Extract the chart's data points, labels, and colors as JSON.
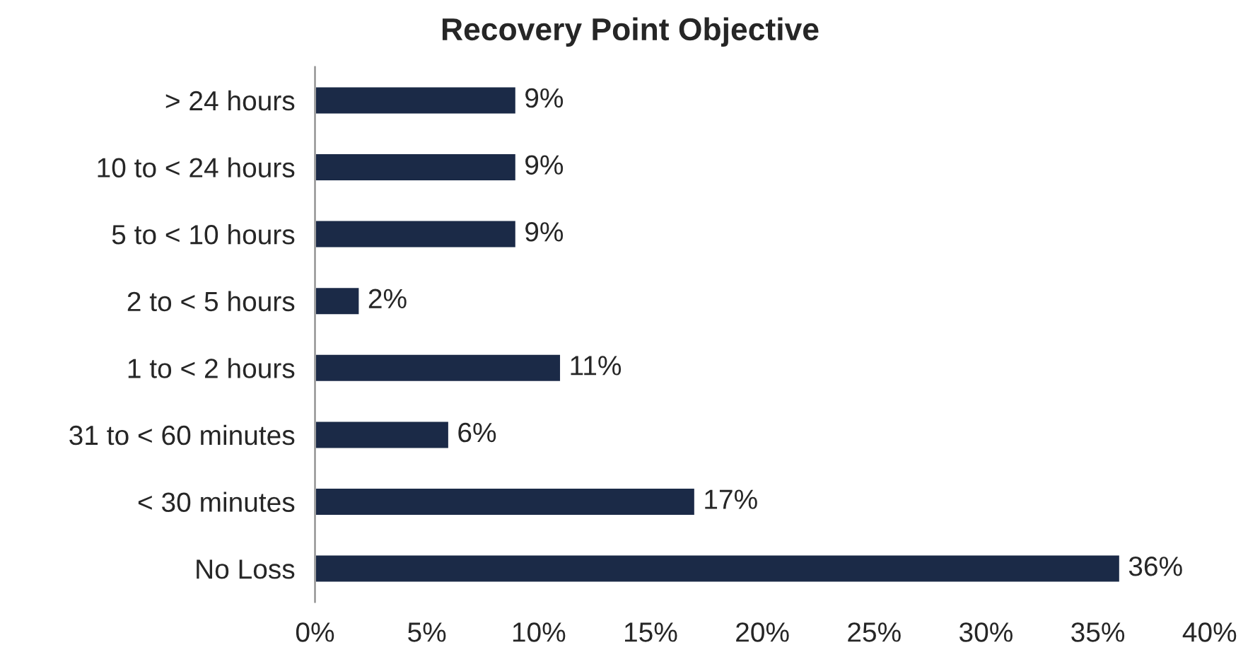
{
  "chart_data": {
    "type": "bar",
    "orientation": "horizontal",
    "title": "Recovery Point Objective",
    "categories": [
      "> 24 hours",
      "10 to < 24 hours",
      "5 to < 10 hours",
      "2 to < 5 hours",
      "1 to < 2 hours",
      "31 to < 60 minutes",
      "< 30 minutes",
      "No Loss"
    ],
    "values": [
      9,
      9,
      9,
      2,
      11,
      6,
      17,
      36
    ],
    "value_labels": [
      "9%",
      "9%",
      "9%",
      "2%",
      "11%",
      "6%",
      "17%",
      "36%"
    ],
    "color": "#1b2a47",
    "xlim": [
      0,
      40
    ],
    "xticks": [
      {
        "value": 0,
        "label": "0%"
      },
      {
        "value": 5,
        "label": "5%"
      },
      {
        "value": 10,
        "label": "10%"
      },
      {
        "value": 15,
        "label": "15%"
      },
      {
        "value": 20,
        "label": "20%"
      },
      {
        "value": 25,
        "label": "25%"
      },
      {
        "value": 30,
        "label": "30%"
      },
      {
        "value": 35,
        "label": "35%"
      },
      {
        "value": 40,
        "label": "40%"
      }
    ],
    "grid": false,
    "legend": false
  }
}
